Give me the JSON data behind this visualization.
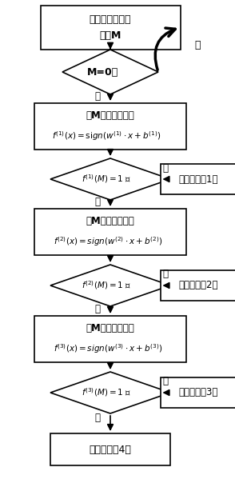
{
  "bg_color": "#ffffff",
  "box_edge": "#000000",
  "title_text": "测试智能终端得\n分为M",
  "diamond0_text": "M=0？",
  "box1_line1": "将M代入判决函数",
  "box1_line2": "$f^{(1)}(x)=\\mathrm{si\\,}gn(w^{(1)}\\cdot x+b^{(1)})$",
  "diamond1_text": "$f^{(1)}(M)=1$ ？",
  "box2_line1": "将M代入判决函数",
  "box2_line2": "$f^{(2)}(x)=sign(w^{(2)}\\cdot x+b^{(2)})$",
  "diamond2_text": "$f^{(2)}(M)=1$ ？",
  "box3_line1": "将M代入判决函数",
  "box3_line2": "$f^{(3)}(x)=sign(w^{(3)}\\cdot x+b^{(3)})$",
  "diamond3_text": "$f^{(3)}(M)=1$ ？",
  "r1_text": "安全级别为1级",
  "r2_text": "安全级别为2级",
  "r3_text": "安全级别为3级",
  "end_text": "安全级别为4级",
  "yes_label": "是",
  "no_label": "否"
}
